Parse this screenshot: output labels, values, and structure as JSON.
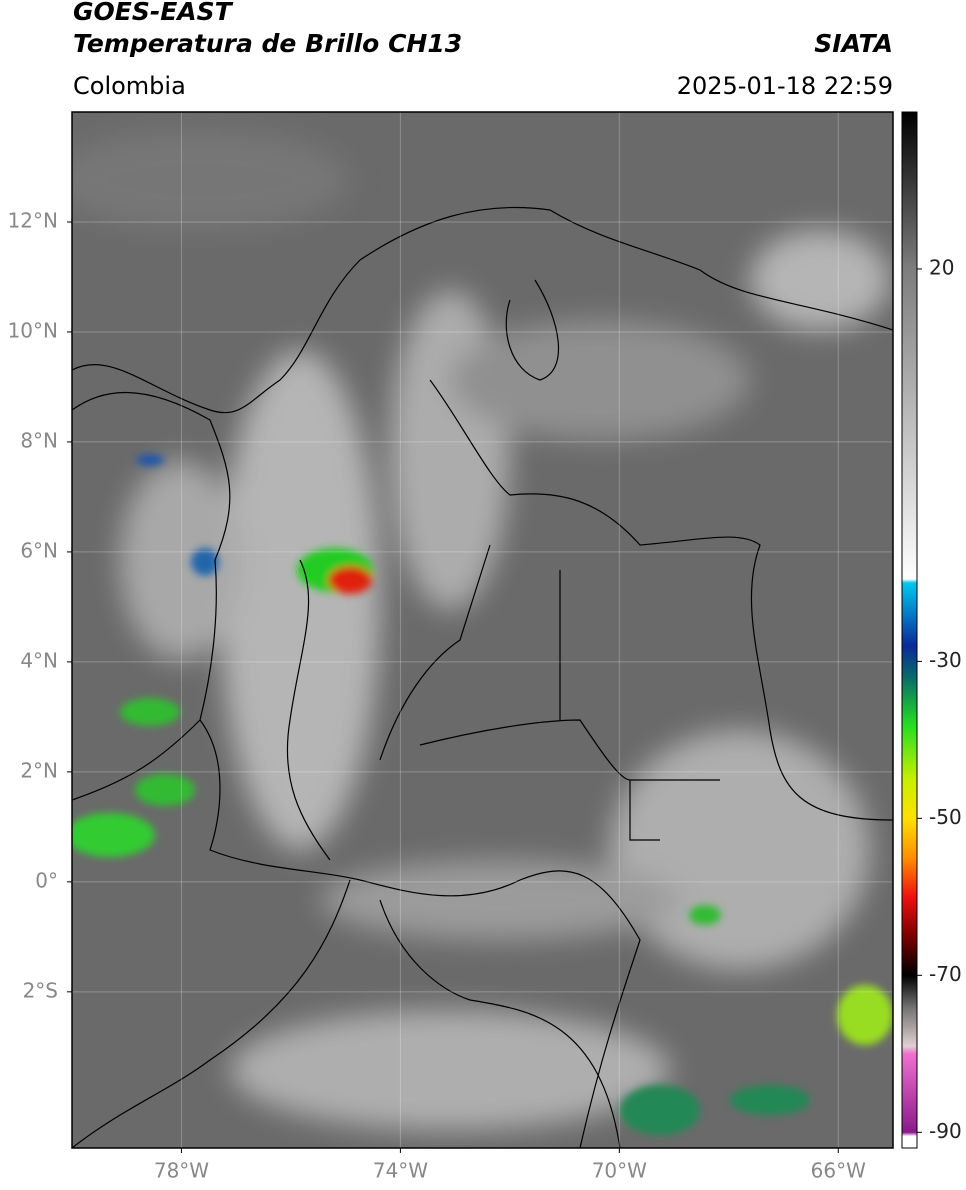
{
  "header": {
    "title": "GOES-EAST",
    "subtitle": "Temperatura de Brillo CH13",
    "source": "SIATA",
    "region": "Colombia",
    "datetime": "2025-01-18 22:59"
  },
  "map": {
    "xlim": [
      -80,
      -65
    ],
    "ylim": [
      -4.84,
      14
    ],
    "xticks": [
      {
        "value": -78,
        "label": "78°W"
      },
      {
        "value": -74,
        "label": "74°W"
      },
      {
        "value": -70,
        "label": "70°W"
      },
      {
        "value": -66,
        "label": "66°W"
      }
    ],
    "yticks": [
      {
        "value": 12,
        "label": "12°N"
      },
      {
        "value": 10,
        "label": "10°N"
      },
      {
        "value": 8,
        "label": "8°N"
      },
      {
        "value": 6,
        "label": "6°N"
      },
      {
        "value": 4,
        "label": "4°N"
      },
      {
        "value": 2,
        "label": "2°N"
      },
      {
        "value": 0,
        "label": "0°"
      },
      {
        "value": -2,
        "label": "2°S"
      }
    ],
    "grid": true
  },
  "colorbar": {
    "clim": [
      -92,
      40
    ],
    "ticks": [
      20,
      -30,
      -50,
      -70,
      -90
    ],
    "colormap": [
      {
        "value": 40,
        "color": "#000000"
      },
      {
        "value": 20,
        "color": "#7d7d7d"
      },
      {
        "value": -19.5,
        "color": "#ffffff"
      },
      {
        "value": -20,
        "color": "#00c8f0"
      },
      {
        "value": -28,
        "color": "#0a2a9a"
      },
      {
        "value": -32,
        "color": "#0a6a6a"
      },
      {
        "value": -38,
        "color": "#22dd22"
      },
      {
        "value": -45,
        "color": "#c8f000"
      },
      {
        "value": -50,
        "color": "#ffe000"
      },
      {
        "value": -55,
        "color": "#ff9000"
      },
      {
        "value": -60,
        "color": "#f01010"
      },
      {
        "value": -65,
        "color": "#7a0000"
      },
      {
        "value": -70,
        "color": "#000000"
      },
      {
        "value": -74,
        "color": "#707070"
      },
      {
        "value": -79,
        "color": "#e0d0d0"
      },
      {
        "value": -80,
        "color": "#f070d0"
      },
      {
        "value": -90,
        "color": "#8a1a8a"
      },
      {
        "value": -90.5,
        "color": "#ffffff"
      },
      {
        "value": -92,
        "color": "#ffffff"
      }
    ]
  }
}
